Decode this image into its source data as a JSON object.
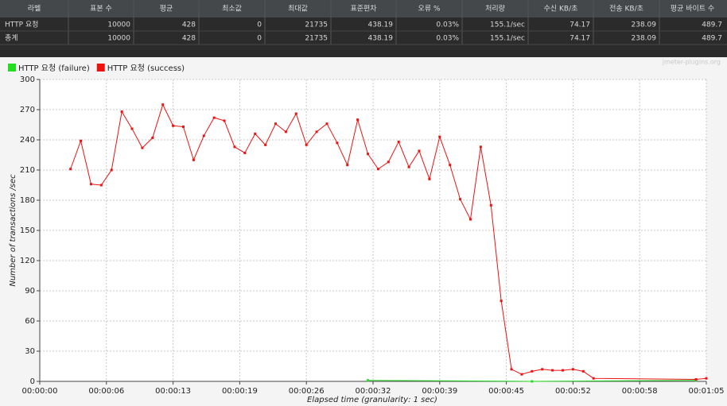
{
  "table": {
    "columns": [
      "라벨",
      "표본 수",
      "평균",
      "최소값",
      "최대값",
      "표준편차",
      "오류 %",
      "처리량",
      "수신 KB/초",
      "전송 KB/초",
      "평균 바이트 수"
    ],
    "rows": [
      [
        "HTTP 요청",
        "10000",
        "428",
        "0",
        "21735",
        "438.19",
        "0.03%",
        "155.1/sec",
        "74.17",
        "238.09",
        "489.7"
      ],
      [
        "총계",
        "10000",
        "428",
        "0",
        "21735",
        "438.19",
        "0.03%",
        "155.1/sec",
        "74.17",
        "238.09",
        "489.7"
      ]
    ]
  },
  "chart_data": {
    "type": "line",
    "watermark": "jmeter-plugins.org",
    "x_label": "Elapsed time (granularity: 1 sec)",
    "y_label": "Number of transactions /sec",
    "xlim": [
      0,
      65
    ],
    "ylim": [
      0,
      300
    ],
    "xticks": [
      {
        "value": 0,
        "label": "00:00:00"
      },
      {
        "value": 6.5,
        "label": "00:00:06"
      },
      {
        "value": 13,
        "label": "00:00:13"
      },
      {
        "value": 19.5,
        "label": "00:00:19"
      },
      {
        "value": 26,
        "label": "00:00:26"
      },
      {
        "value": 32.5,
        "label": "00:00:32"
      },
      {
        "value": 39,
        "label": "00:00:39"
      },
      {
        "value": 45.5,
        "label": "00:00:45"
      },
      {
        "value": 52,
        "label": "00:00:52"
      },
      {
        "value": 58.5,
        "label": "00:00:58"
      },
      {
        "value": 65,
        "label": "00:01:05"
      }
    ],
    "yticks": [
      0,
      30,
      60,
      90,
      120,
      150,
      180,
      210,
      240,
      270,
      300
    ],
    "grid": true,
    "series": [
      {
        "name": "HTTP 요청 (failure)",
        "color": "#22dd22",
        "x": [
          32,
          48,
          64
        ],
        "values": [
          1,
          0,
          1
        ]
      },
      {
        "name": "HTTP 요청 (success)",
        "color": "#ee1111",
        "x": [
          3,
          4,
          5,
          6,
          7,
          8,
          9,
          10,
          11,
          12,
          13,
          14,
          15,
          16,
          17,
          18,
          19,
          20,
          21,
          22,
          23,
          24,
          25,
          26,
          27,
          28,
          29,
          30,
          31,
          32,
          33,
          34,
          35,
          36,
          37,
          38,
          39,
          40,
          41,
          42,
          43,
          44,
          45,
          46,
          47,
          48,
          49,
          50,
          51,
          52,
          53,
          54,
          64,
          65
        ],
        "values": [
          211,
          239,
          196,
          195,
          210,
          268,
          251,
          232,
          242,
          275,
          254,
          253,
          220,
          244,
          262,
          259,
          233,
          227,
          246,
          235,
          256,
          248,
          266,
          235,
          248,
          256,
          237,
          215,
          260,
          226,
          211,
          218,
          238,
          213,
          229,
          201,
          243,
          215,
          181,
          161,
          233,
          175,
          80,
          12,
          7,
          10,
          12,
          11,
          11,
          12,
          10,
          3,
          2,
          3
        ]
      }
    ]
  }
}
